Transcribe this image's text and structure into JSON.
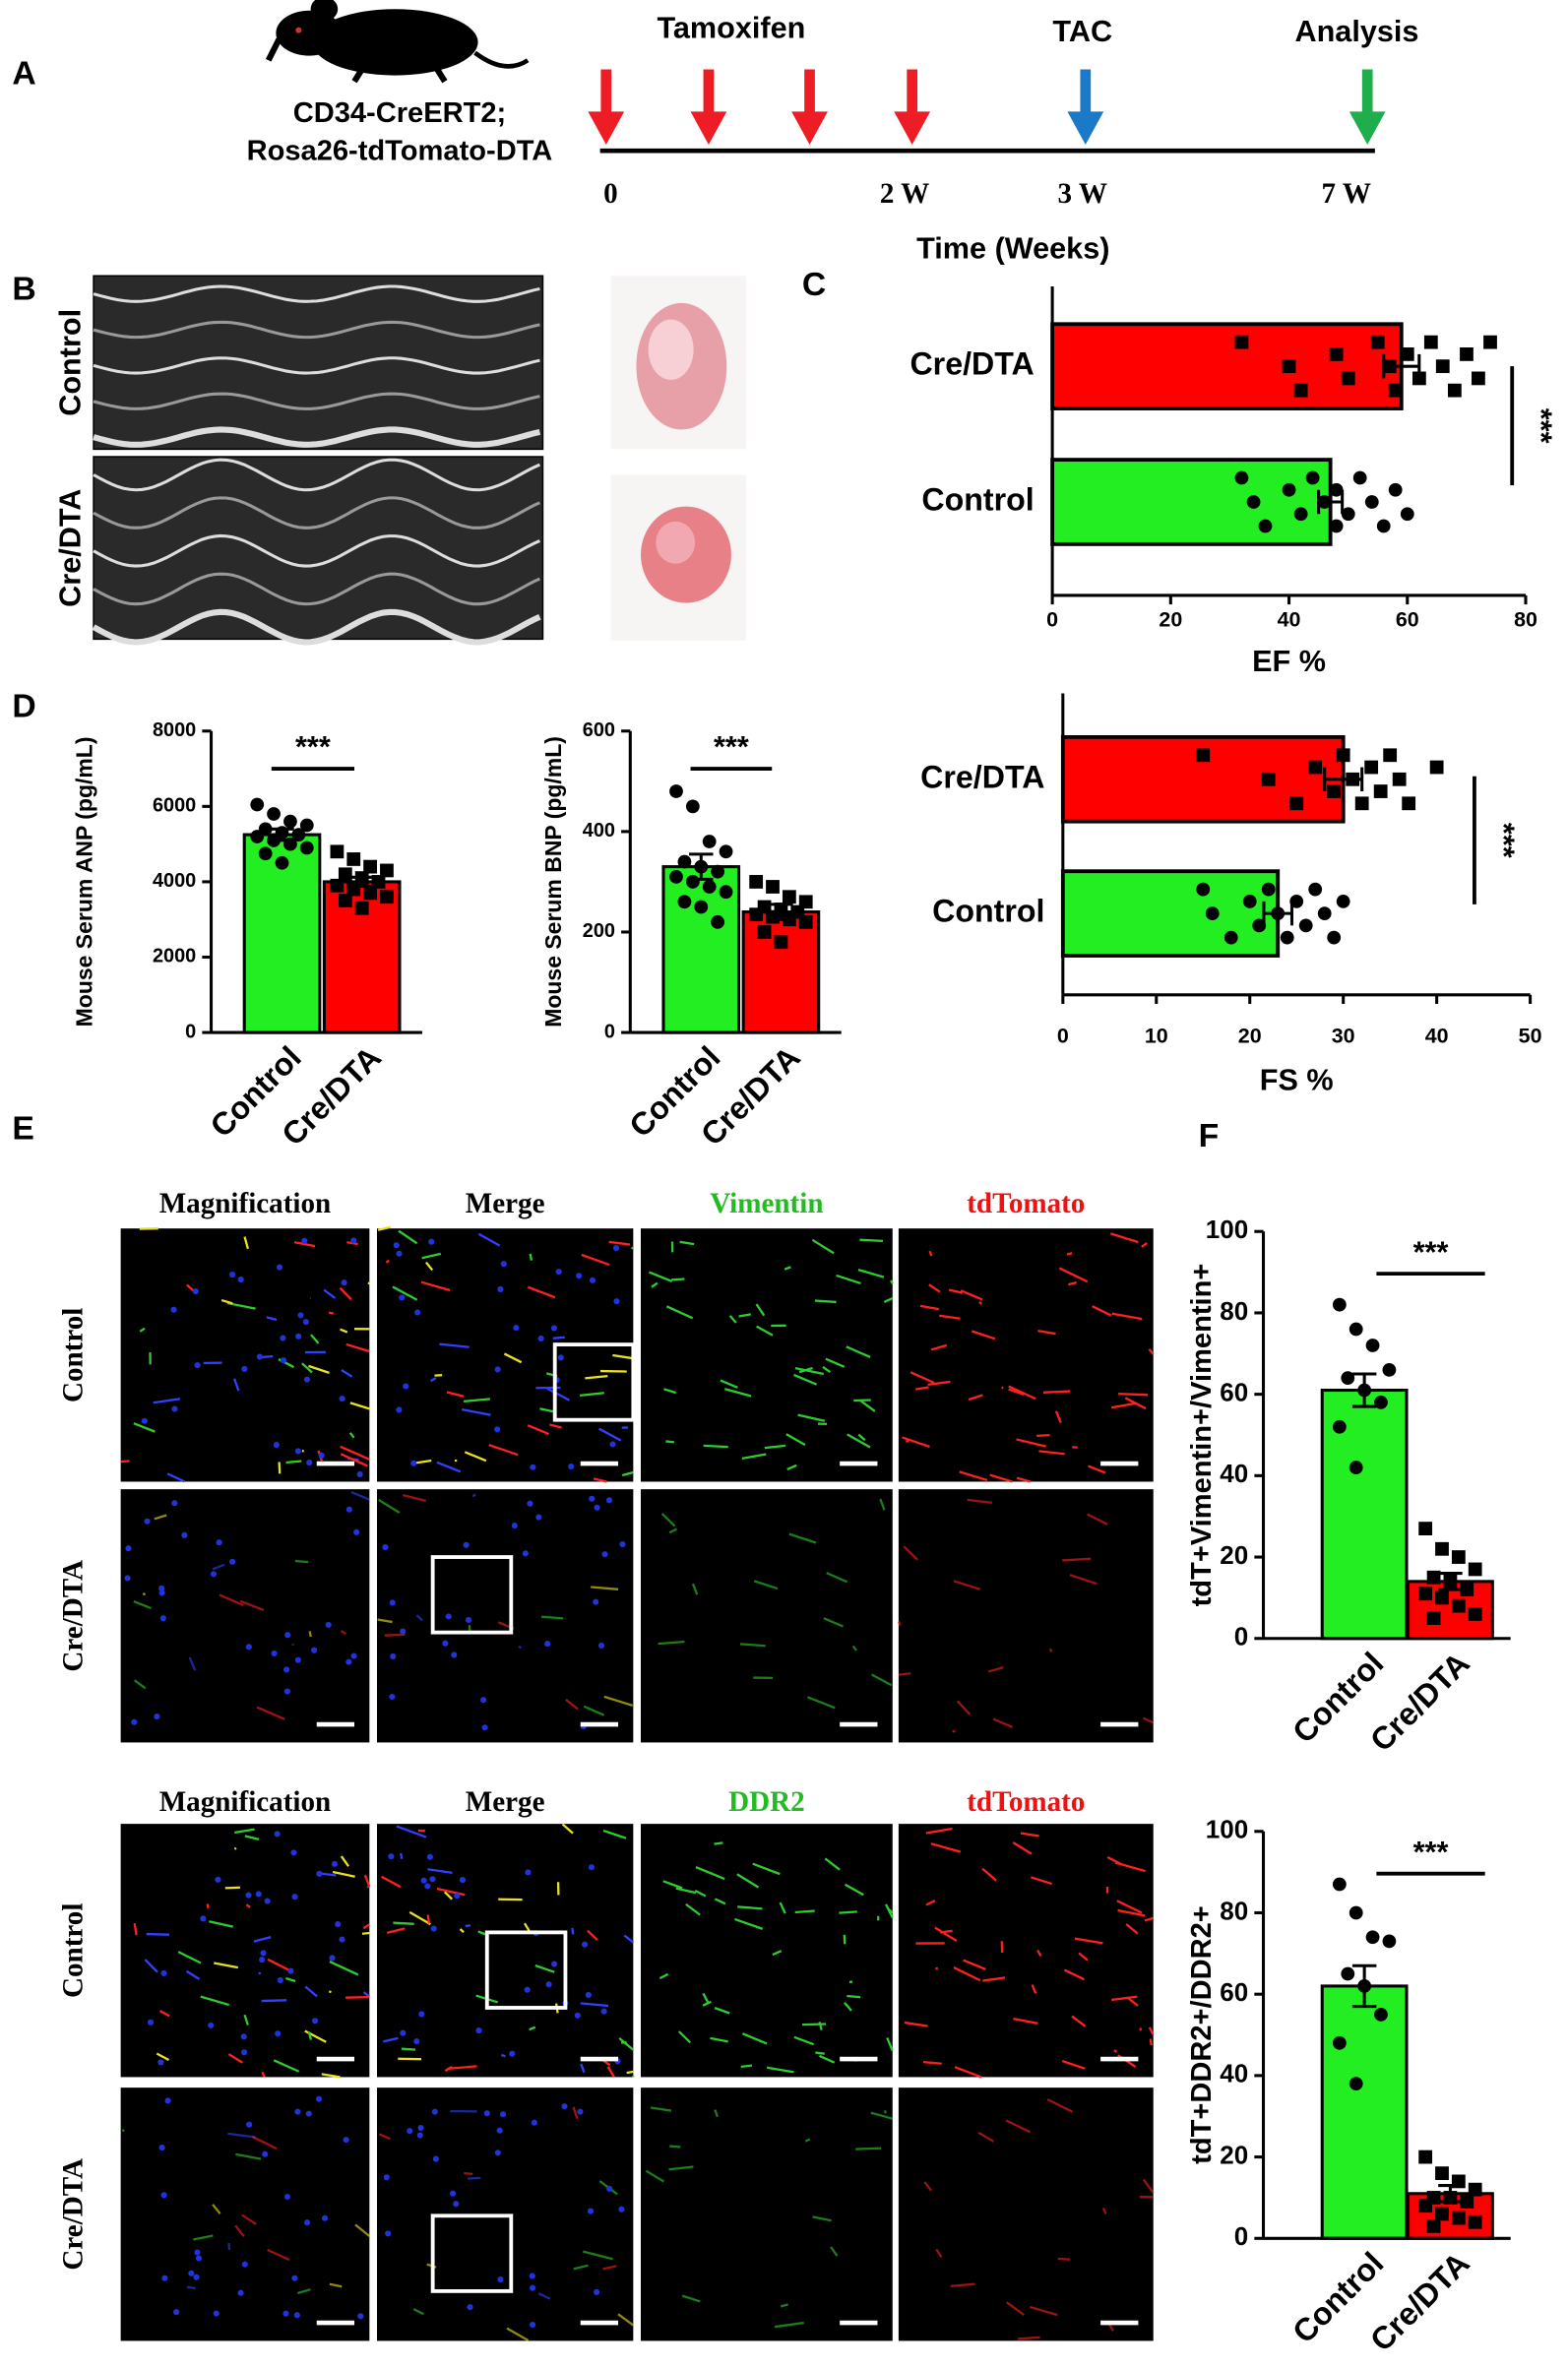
{
  "panel_labels": [
    "A",
    "B",
    "C",
    "D",
    "E",
    "F"
  ],
  "timeline": {
    "strain": [
      "CD34-CreERT2;",
      "Rosa26-tdTomato-DTA"
    ],
    "events": [
      "Tamoxifen",
      "TAC",
      "Analysis"
    ],
    "ticks": [
      "0",
      "2 W",
      "3 W",
      "7 W"
    ],
    "axis_label": "Time (Weeks)"
  },
  "echo": {
    "rows": [
      "Control",
      "Cre/DTA"
    ]
  },
  "microscopy": [
    {
      "columns": [
        "Magnification",
        "Merge",
        "Vimentin",
        "tdTomato"
      ],
      "rows": [
        "Control",
        "Cre/DTA"
      ]
    },
    {
      "columns": [
        "Magnification",
        "Merge",
        "DDR2",
        "tdTomato"
      ],
      "rows": [
        "Control",
        "Cre/DTA"
      ]
    }
  ],
  "chart_data": [
    {
      "type": "bar",
      "orientation": "horizontal",
      "categories": [
        "Cre/DTA",
        "Control"
      ],
      "values": [
        59,
        47
      ],
      "errors": [
        3,
        2
      ],
      "colors": [
        "#ff0000",
        "#22ee22"
      ],
      "markers": [
        "square",
        "circle"
      ],
      "points": [
        [
          32,
          40,
          42,
          48,
          50,
          55,
          57,
          58,
          60,
          62,
          64,
          66,
          68,
          70,
          72,
          74
        ],
        [
          32,
          34,
          36,
          40,
          42,
          44,
          46,
          48,
          48,
          50,
          52,
          54,
          56,
          58,
          60
        ]
      ],
      "xlim": [
        0,
        80
      ],
      "xticks": [
        0,
        20,
        40,
        60,
        80
      ],
      "xlabel": "EF %",
      "annotation": "***"
    },
    {
      "type": "bar",
      "orientation": "horizontal",
      "categories": [
        "Cre/DTA",
        "Control"
      ],
      "values": [
        30,
        23
      ],
      "errors": [
        2,
        1.5
      ],
      "colors": [
        "#ff0000",
        "#22ee22"
      ],
      "markers": [
        "square",
        "circle"
      ],
      "points": [
        [
          15,
          22,
          25,
          27,
          29,
          30,
          31,
          32,
          33,
          34,
          35,
          36,
          37,
          40
        ],
        [
          15,
          16,
          18,
          20,
          21,
          22,
          23,
          24,
          25,
          26,
          27,
          28,
          29,
          30
        ]
      ],
      "xlim": [
        0,
        50
      ],
      "xticks": [
        0,
        10,
        20,
        30,
        40,
        50
      ],
      "xlabel": "FS %",
      "annotation": "***"
    },
    {
      "type": "bar",
      "orientation": "vertical",
      "categories": [
        "Control",
        "Cre/DTA"
      ],
      "values": [
        5250,
        4000
      ],
      "errors": [
        150,
        120
      ],
      "colors": [
        "#22ee22",
        "#ff0000"
      ],
      "markers": [
        "circle",
        "square"
      ],
      "points": [
        [
          6050,
          5800,
          5600,
          5500,
          5400,
          5300,
          5250,
          5200,
          5100,
          5000,
          4900,
          4750,
          4500
        ],
        [
          4800,
          4600,
          4400,
          4300,
          4200,
          4100,
          4000,
          3900,
          3800,
          3700,
          3600,
          3500,
          3300
        ]
      ],
      "ylim": [
        0,
        8000
      ],
      "yticks": [
        0,
        2000,
        4000,
        6000,
        8000
      ],
      "ylabel": "Mouse Serum ANP (pg/mL)",
      "annotation": "***"
    },
    {
      "type": "bar",
      "orientation": "vertical",
      "categories": [
        "Control",
        "Cre/DTA"
      ],
      "values": [
        330,
        240
      ],
      "errors": [
        25,
        15
      ],
      "colors": [
        "#22ee22",
        "#ff0000"
      ],
      "markers": [
        "circle",
        "square"
      ],
      "points": [
        [
          480,
          450,
          380,
          360,
          340,
          330,
          320,
          310,
          300,
          290,
          280,
          260,
          250,
          220
        ],
        [
          300,
          290,
          270,
          260,
          250,
          245,
          240,
          235,
          230,
          225,
          220,
          200,
          180
        ]
      ],
      "ylim": [
        0,
        600
      ],
      "yticks": [
        0,
        200,
        400,
        600
      ],
      "ylabel": "Mouse Serum BNP (pg/mL)",
      "annotation": "***"
    },
    {
      "type": "bar",
      "orientation": "vertical",
      "categories": [
        "Control",
        "Cre/DTA"
      ],
      "values": [
        61,
        14
      ],
      "errors": [
        4,
        2
      ],
      "colors": [
        "#22ee22",
        "#ff0000"
      ],
      "markers": [
        "circle",
        "square"
      ],
      "points": [
        [
          82,
          76,
          72,
          66,
          64,
          61,
          58,
          52,
          42
        ],
        [
          27,
          22,
          20,
          17,
          15,
          14,
          12,
          11,
          10,
          8,
          6,
          5
        ]
      ],
      "ylim": [
        0,
        100
      ],
      "yticks": [
        0,
        20,
        40,
        60,
        80,
        100
      ],
      "ylabel": "tdT+Vimentin+/Vimentin+",
      "annotation": "***"
    },
    {
      "type": "bar",
      "orientation": "vertical",
      "categories": [
        "Control",
        "Cre/DTA"
      ],
      "values": [
        62,
        11
      ],
      "errors": [
        5,
        2
      ],
      "colors": [
        "#22ee22",
        "#ff0000"
      ],
      "markers": [
        "circle",
        "square"
      ],
      "points": [
        [
          87,
          80,
          74,
          73,
          65,
          62,
          55,
          48,
          38
        ],
        [
          20,
          16,
          14,
          12,
          10,
          10,
          9,
          8,
          6,
          5,
          4,
          3
        ]
      ],
      "ylim": [
        0,
        100
      ],
      "yticks": [
        0,
        20,
        40,
        60,
        80,
        100
      ],
      "ylabel": "tdT+DDR2+/DDR2+",
      "annotation": "***"
    }
  ]
}
